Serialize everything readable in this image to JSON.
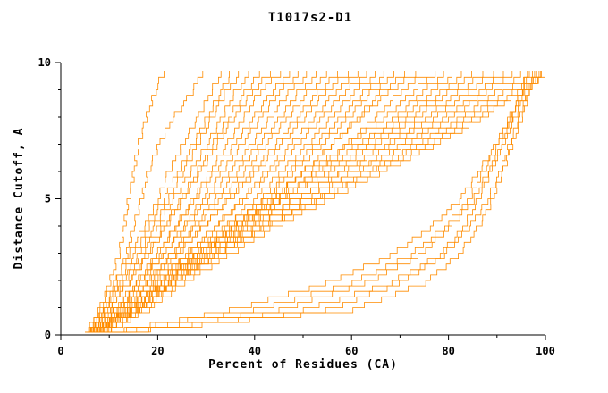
{
  "title": "T1017s2-D1",
  "chart_data": {
    "type": "line",
    "title": "T1017s2-D1",
    "xlabel": "Percent of Residues (CA)",
    "ylabel": "Distance Cutoff, A",
    "xlim": [
      0,
      100
    ],
    "ylim": [
      0,
      10
    ],
    "x_ticks": [
      0,
      20,
      40,
      60,
      80,
      100
    ],
    "y_ticks": [
      0,
      5,
      10
    ],
    "x_minor_step": 10,
    "y_minor_step": 1,
    "grid": false,
    "legend": "none",
    "line_color": "#ff8c00",
    "axis_color": "#000000",
    "y_levels": [
      0.1,
      1,
      2,
      3,
      4,
      5,
      6,
      7,
      8,
      9,
      9.7
    ],
    "series_xs": [
      [
        6,
        8,
        10,
        12,
        13,
        14,
        15,
        16,
        17.5,
        19.5,
        21
      ],
      [
        7,
        9,
        11.5,
        13.5,
        15,
        16.5,
        18,
        20,
        23,
        27,
        29
      ],
      [
        5,
        8,
        11,
        14,
        17,
        20,
        22,
        25,
        28,
        31,
        33
      ],
      [
        6,
        9,
        12,
        15,
        18,
        21,
        24,
        27,
        30,
        33,
        35
      ],
      [
        5.5,
        9,
        12.5,
        16,
        19,
        22,
        25,
        28,
        31,
        34,
        37
      ],
      [
        7,
        10,
        13,
        16.5,
        20,
        23,
        26.5,
        30,
        33,
        36,
        39
      ],
      [
        6,
        10,
        14,
        17.5,
        21,
        24.5,
        28,
        31,
        34.5,
        38,
        41
      ],
      [
        5,
        9.5,
        14,
        18,
        21.5,
        25,
        28.5,
        32,
        35.5,
        39.5,
        43
      ],
      [
        8,
        12,
        16,
        20,
        23.5,
        27,
        30.5,
        34,
        37.5,
        41,
        45
      ],
      [
        6.5,
        11,
        15.5,
        19.5,
        23.5,
        27.5,
        31.5,
        35.5,
        39.5,
        43.5,
        47
      ],
      [
        7,
        12,
        16.5,
        21,
        25,
        29,
        33,
        37,
        41,
        45,
        49
      ],
      [
        5.5,
        11,
        16,
        21,
        25.5,
        30,
        34.5,
        39,
        43,
        47,
        51
      ],
      [
        8,
        13,
        18,
        22.5,
        27,
        31.5,
        36,
        40.5,
        45,
        49,
        53
      ],
      [
        6,
        12,
        17.5,
        22.5,
        27.5,
        32.5,
        37.5,
        42,
        46.5,
        51,
        55
      ],
      [
        7.5,
        13,
        18.5,
        24,
        29,
        34,
        39,
        44,
        48.5,
        53,
        57
      ],
      [
        5,
        11.5,
        17.5,
        23.5,
        29,
        34.5,
        40,
        45,
        50,
        54.5,
        59
      ],
      [
        8.5,
        14.5,
        20.5,
        26,
        31.5,
        37,
        42,
        47,
        52,
        56.5,
        61
      ],
      [
        6,
        13,
        19.5,
        25.5,
        31.5,
        37.5,
        43,
        48.5,
        53.5,
        58.5,
        63
      ],
      [
        7,
        14,
        21,
        27.5,
        33.5,
        39.5,
        45,
        50.5,
        55.5,
        60.5,
        65
      ],
      [
        9,
        16,
        22.5,
        29,
        35,
        41,
        46.5,
        52,
        57.5,
        62.5,
        67
      ],
      [
        6.5,
        14,
        21.5,
        28.5,
        35,
        41.5,
        47.5,
        53.5,
        59,
        64,
        69
      ],
      [
        8,
        16,
        23.5,
        30.5,
        37,
        43.5,
        49.5,
        55.5,
        61,
        66,
        71
      ],
      [
        5.5,
        14,
        22,
        29.5,
        36.5,
        43,
        49.5,
        55.5,
        61.5,
        67.5,
        73
      ],
      [
        7,
        15.5,
        23.5,
        31.5,
        38.5,
        45.5,
        52,
        58.5,
        64.5,
        70,
        75
      ],
      [
        6,
        13,
        19,
        26,
        33,
        41.5,
        50,
        58.5,
        66.5,
        72.5,
        77
      ],
      [
        8,
        15,
        21,
        28,
        35,
        43.5,
        52,
        60.5,
        68.5,
        74.5,
        79
      ],
      [
        6.5,
        14,
        20,
        27.5,
        35,
        43.5,
        52.5,
        61.5,
        70,
        76.5,
        81
      ],
      [
        7,
        14.5,
        21,
        28.5,
        36,
        45,
        54,
        63,
        71.5,
        78.5,
        83
      ],
      [
        5.5,
        13.5,
        20,
        27.5,
        35.5,
        45,
        55,
        64.5,
        73,
        80,
        85
      ],
      [
        8,
        16,
        22,
        30,
        38,
        47.5,
        57,
        66.5,
        75,
        82,
        87
      ],
      [
        6,
        14.5,
        21,
        29,
        37.5,
        47.5,
        57.5,
        67.5,
        76.5,
        84,
        89
      ],
      [
        7.5,
        16,
        22.5,
        31,
        39.5,
        49.5,
        59.5,
        69.5,
        78.5,
        86,
        91
      ],
      [
        6,
        14.5,
        21.5,
        30.5,
        39,
        49.5,
        60,
        70.5,
        80,
        87.5,
        93
      ],
      [
        8.5,
        17,
        24,
        32.5,
        41.5,
        51.5,
        62,
        72.5,
        82,
        89.5,
        95
      ],
      [
        7,
        16,
        23,
        32,
        41,
        52,
        63,
        73.5,
        83.5,
        91.5,
        97
      ],
      [
        6.5,
        15.5,
        23,
        32,
        41.5,
        52.5,
        63.5,
        75,
        85,
        93.5,
        99
      ],
      [
        9,
        18,
        25.5,
        34.5,
        43.5,
        54.5,
        65.5,
        76.5,
        86.5,
        94.5,
        100
      ],
      [
        8,
        60,
        75,
        82,
        86,
        89,
        91,
        93,
        95,
        96.5,
        98
      ],
      [
        7,
        50,
        68,
        78,
        83,
        86,
        88.5,
        91,
        93,
        95,
        97
      ],
      [
        6,
        40,
        60,
        72,
        79,
        84,
        87,
        90,
        92.5,
        95,
        96
      ],
      [
        9,
        55,
        70,
        79,
        84,
        88,
        90.5,
        92.5,
        94.5,
        96.5,
        99
      ],
      [
        8,
        35,
        55,
        68,
        76,
        82,
        86,
        89.5,
        92.5,
        95.5,
        98
      ],
      [
        7,
        45,
        63,
        74,
        80,
        85,
        88,
        91,
        93.5,
        96,
        99.5
      ]
    ]
  }
}
